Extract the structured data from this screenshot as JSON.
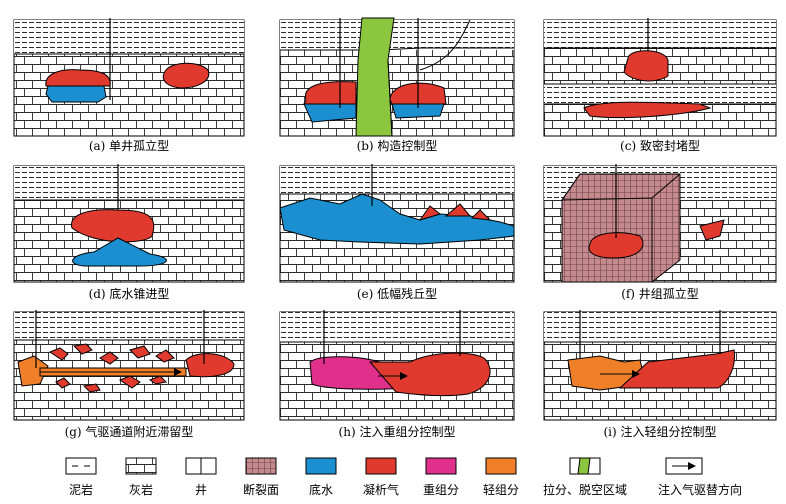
{
  "panels": [
    {
      "id": "a",
      "caption": "(a) 单井孤立型"
    },
    {
      "id": "b",
      "caption": "(b) 构造控制型"
    },
    {
      "id": "c",
      "caption": "(c) 致密封堵型"
    },
    {
      "id": "d",
      "caption": "(d) 底水锥进型"
    },
    {
      "id": "e",
      "caption": "(e) 低幅残丘型"
    },
    {
      "id": "f",
      "caption": "(f) 井组孤立型"
    },
    {
      "id": "g",
      "caption": "(g) 气驱通道附近滞留型"
    },
    {
      "id": "h",
      "caption": "(h) 注入重组分控制型"
    },
    {
      "id": "i",
      "caption": "(i) 注入轻组分控制型"
    }
  ],
  "legend": [
    {
      "key": "mudstone",
      "label": "泥岩"
    },
    {
      "key": "limestone",
      "label": "灰岩"
    },
    {
      "key": "well",
      "label": "井"
    },
    {
      "key": "fault",
      "label": "断裂面",
      "color": "#c48a8e"
    },
    {
      "key": "water",
      "label": "底水",
      "color": "#1b8fcf"
    },
    {
      "key": "condensate",
      "label": "凝析气",
      "color": "#e03a2f"
    },
    {
      "key": "heavy",
      "label": "重组分",
      "color": "#e0308c"
    },
    {
      "key": "light",
      "label": "轻组分",
      "color": "#f07f2a"
    },
    {
      "key": "pull",
      "label": "拉分、脱空区域",
      "color": "#8cc63f"
    },
    {
      "key": "arrow",
      "label": "注入气驱替方向"
    }
  ]
}
